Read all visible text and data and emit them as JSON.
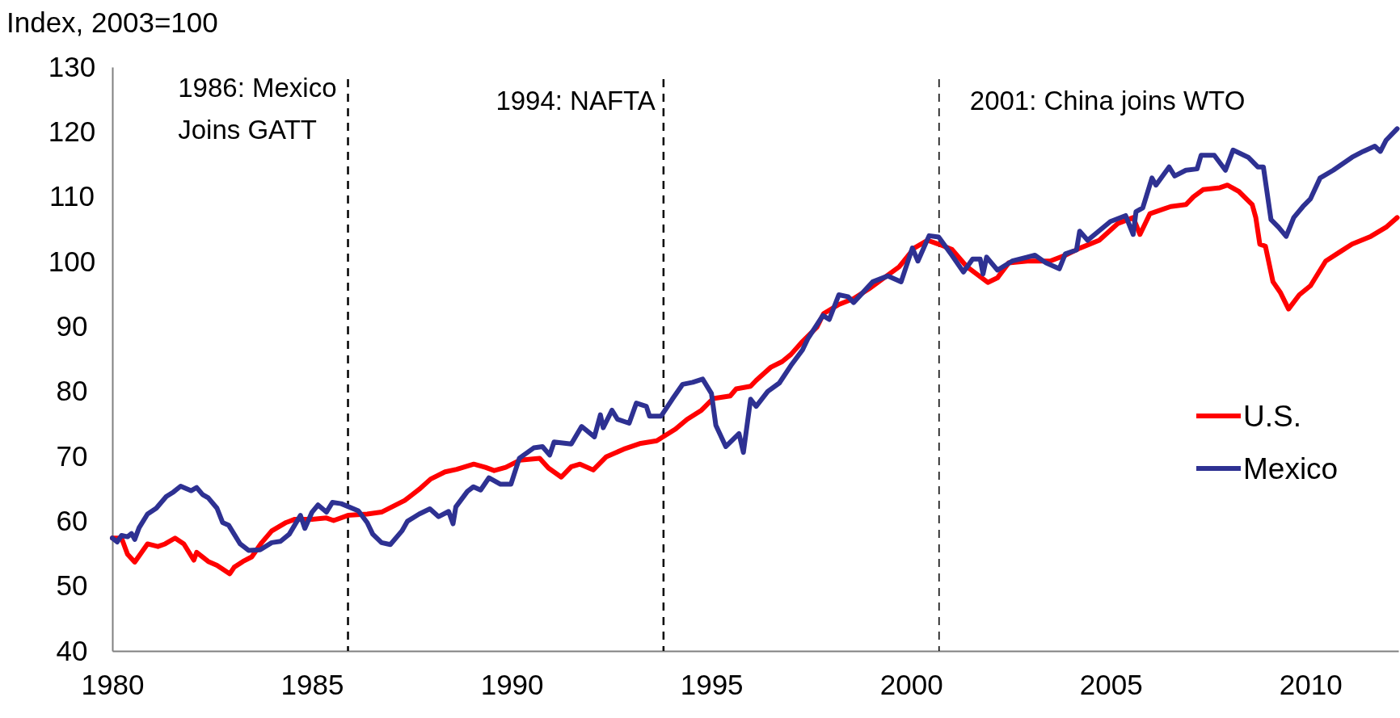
{
  "chart_data": {
    "type": "line",
    "ylabel": "Index, 2003=100",
    "xlim": [
      1980,
      2012.2
    ],
    "xticks": [
      1980,
      1985,
      1990,
      1995,
      2000,
      2005,
      2010
    ],
    "ylim": [
      40,
      130
    ],
    "yticks": [
      40,
      50,
      60,
      70,
      80,
      90,
      100,
      110,
      120,
      130
    ],
    "grid": false,
    "legend": "right",
    "ref_lines": [
      {
        "axis": "x",
        "value": 1985.9,
        "label": "1986: Mexico\nJoins GATT",
        "line_style": "dashed",
        "color": "#000000"
      },
      {
        "axis": "x",
        "value": 1993.8,
        "label": "1994: NAFTA",
        "line_style": "dashed",
        "color": "#000000"
      },
      {
        "axis": "x",
        "value": 2000.7,
        "label": "2001: China joins WTO",
        "line_style": "dashed",
        "color": "#000000"
      }
    ],
    "series": [
      {
        "name": "U.S.",
        "color": "#ff0000",
        "x": [
          1980,
          1980.23,
          1980.38,
          1980.56,
          1980.88,
          1981.14,
          1981.32,
          1981.57,
          1981.79,
          1982.04,
          1982.11,
          1982.4,
          1982.62,
          1982.94,
          1983.05,
          1983.27,
          1983.49,
          1983.74,
          1983.99,
          1984.35,
          1984.57,
          1985.0,
          1985.36,
          1985.54,
          1985.9,
          1986.38,
          1986.74,
          1987.03,
          1987.32,
          1987.68,
          1987.97,
          1988.33,
          1988.62,
          1989.05,
          1989.34,
          1989.56,
          1989.85,
          1990.2,
          1990.7,
          1990.92,
          1991.24,
          1991.49,
          1991.71,
          1992.04,
          1992.36,
          1992.8,
          1993.23,
          1993.63,
          1994.1,
          1994.39,
          1994.75,
          1995.04,
          1995.47,
          1995.62,
          1995.98,
          1996.12,
          1996.48,
          1996.77,
          1996.99,
          1997.28,
          1997.64,
          1997.81,
          1998.19,
          1998.56,
          1998.94,
          1999.32,
          1999.7,
          2000.08,
          2000.41,
          2000.69,
          2001.02,
          2001.4,
          2001.92,
          2002.16,
          2002.44,
          2002.91,
          2003.48,
          2003.86,
          2004.23,
          2004.71,
          2005.18,
          2005.56,
          2005.73,
          2005.98,
          2006.5,
          2006.88,
          2007.07,
          2007.31,
          2007.73,
          2007.92,
          2008.21,
          2008.54,
          2008.63,
          2008.73,
          2008.87,
          2009.06,
          2009.25,
          2009.45,
          2009.72,
          2010.0,
          2010.38,
          2010.76,
          2011.04,
          2011.51,
          2011.89,
          2012.17
        ],
        "values": [
          57.4,
          57.4,
          54.9,
          53.7,
          56.5,
          56.1,
          56.5,
          57.4,
          56.5,
          54.0,
          55.2,
          53.8,
          53.2,
          51.9,
          52.9,
          53.8,
          54.5,
          56.7,
          58.5,
          59.8,
          60.3,
          60.3,
          60.5,
          60.1,
          60.9,
          61.1,
          61.4,
          62.3,
          63.2,
          64.9,
          66.5,
          67.6,
          68.0,
          68.8,
          68.3,
          67.8,
          68.3,
          69.4,
          69.7,
          68.2,
          66.8,
          68.4,
          68.8,
          67.9,
          69.9,
          71.1,
          72.0,
          72.4,
          74.2,
          75.7,
          77.1,
          78.9,
          79.3,
          80.4,
          80.8,
          81.7,
          83.7,
          84.6,
          85.7,
          87.7,
          89.9,
          92.0,
          93.4,
          94.3,
          95.8,
          97.5,
          99.2,
          102.1,
          103.3,
          102.7,
          101.9,
          99.2,
          96.8,
          97.5,
          99.8,
          100.1,
          100.1,
          101.0,
          102.1,
          103.3,
          105.9,
          106.8,
          104.2,
          107.4,
          108.5,
          108.8,
          110.0,
          111.1,
          111.4,
          111.8,
          110.8,
          108.8,
          106.8,
          102.7,
          102.4,
          96.9,
          95.2,
          92.7,
          94.9,
          96.3,
          100.1,
          101.6,
          102.7,
          103.9,
          105.3,
          106.8
        ]
      },
      {
        "name": "Mexico",
        "color": "#2e3192",
        "x": [
          1980,
          1980.12,
          1980.23,
          1980.38,
          1980.48,
          1980.56,
          1980.67,
          1980.88,
          1981.1,
          1981.35,
          1981.53,
          1981.71,
          1981.97,
          1982.11,
          1982.26,
          1982.4,
          1982.62,
          1982.76,
          1982.91,
          1983.2,
          1983.41,
          1983.7,
          1983.99,
          1984.21,
          1984.43,
          1984.71,
          1984.82,
          1985.0,
          1985.15,
          1985.36,
          1985.51,
          1985.73,
          1986.16,
          1986.38,
          1986.52,
          1986.74,
          1986.96,
          1987.25,
          1987.39,
          1987.68,
          1987.95,
          1988.17,
          1988.42,
          1988.53,
          1988.6,
          1988.89,
          1989.04,
          1989.22,
          1989.43,
          1989.72,
          1989.98,
          1990.19,
          1990.55,
          1990.77,
          1990.95,
          1991.06,
          1991.49,
          1991.75,
          1992.07,
          1992.22,
          1992.29,
          1992.51,
          1992.65,
          1992.94,
          1993.12,
          1993.37,
          1993.45,
          1993.74,
          1994.02,
          1994.28,
          1994.53,
          1994.78,
          1995.0,
          1995.11,
          1995.36,
          1995.69,
          1995.8,
          1995.98,
          1996.12,
          1996.41,
          1996.7,
          1996.99,
          1997.28,
          1997.42,
          1997.79,
          1997.95,
          1998.19,
          1998.42,
          1998.56,
          1999.04,
          1999.42,
          1999.75,
          2000.03,
          2000.17,
          2000.45,
          2000.69,
          2001.02,
          2001.31,
          2001.54,
          2001.73,
          2001.8,
          2001.89,
          2002.16,
          2002.53,
          2003.1,
          2003.38,
          2003.71,
          2003.86,
          2004.14,
          2004.22,
          2004.42,
          2004.99,
          2005.37,
          2005.56,
          2005.63,
          2005.8,
          2006.03,
          2006.13,
          2006.46,
          2006.6,
          2006.88,
          2007.16,
          2007.26,
          2007.59,
          2007.87,
          2008.06,
          2008.44,
          2008.68,
          2008.82,
          2009.01,
          2009.2,
          2009.39,
          2009.58,
          2009.81,
          2010.0,
          2010.24,
          2010.57,
          2011.04,
          2011.32,
          2011.61,
          2011.75,
          2011.89,
          2012.17
        ],
        "values": [
          57.4,
          56.8,
          57.8,
          57.6,
          58.1,
          57.2,
          59.0,
          61.1,
          62.0,
          63.8,
          64.5,
          65.4,
          64.7,
          65.2,
          64.1,
          63.6,
          62.0,
          59.8,
          59.4,
          56.5,
          55.5,
          55.6,
          56.7,
          56.9,
          58.0,
          60.9,
          58.9,
          61.4,
          62.5,
          61.4,
          62.9,
          62.7,
          61.6,
          59.8,
          58.0,
          56.7,
          56.4,
          58.5,
          60.0,
          61.1,
          61.9,
          60.7,
          61.5,
          59.6,
          62.2,
          64.6,
          65.3,
          64.8,
          66.7,
          65.7,
          65.7,
          69.7,
          71.3,
          71.5,
          70.2,
          72.2,
          71.9,
          74.6,
          73.0,
          76.4,
          74.4,
          77.1,
          75.7,
          75.1,
          78.2,
          77.7,
          76.2,
          76.2,
          78.8,
          81.1,
          81.4,
          81.9,
          79.7,
          74.8,
          71.5,
          73.5,
          70.6,
          78.8,
          77.7,
          80.0,
          81.3,
          84.0,
          86.4,
          88.2,
          91.7,
          91.1,
          94.9,
          94.6,
          93.7,
          96.9,
          97.8,
          96.9,
          102.1,
          100.1,
          104.0,
          103.8,
          101.0,
          98.4,
          100.4,
          100.4,
          98.1,
          100.7,
          98.7,
          100.1,
          101.0,
          99.8,
          98.9,
          101.2,
          101.8,
          104.7,
          103.3,
          106.2,
          107.1,
          104.2,
          107.7,
          108.3,
          112.9,
          111.8,
          114.6,
          113.2,
          114.1,
          114.3,
          116.4,
          116.4,
          114.1,
          117.2,
          116.1,
          114.6,
          114.6,
          106.5,
          105.3,
          103.9,
          106.8,
          108.5,
          109.7,
          112.9,
          114.1,
          116.1,
          117.0,
          117.8,
          117.0,
          118.7,
          120.5
        ]
      }
    ]
  }
}
